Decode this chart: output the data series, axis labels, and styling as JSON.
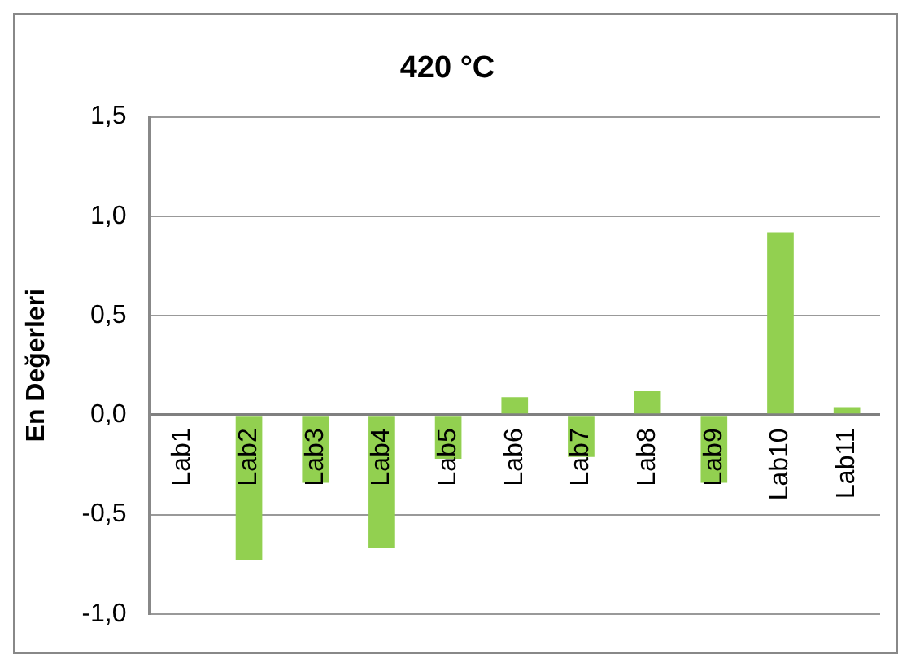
{
  "chart_data": {
    "type": "bar",
    "title": "420 °C",
    "ylabel": "En Değerleri",
    "categories": [
      "Lab1",
      "Lab2",
      "Lab3",
      "Lab4",
      "Lab5",
      "Lab6",
      "Lab7",
      "Lab8",
      "Lab9",
      "Lab10",
      "Lab11"
    ],
    "values": [
      0,
      -0.73,
      -0.34,
      -0.67,
      -0.22,
      0.09,
      -0.21,
      0.12,
      -0.34,
      0.92,
      0.04
    ],
    "color": "#92d050",
    "ylim": [
      -1,
      1.5
    ],
    "yticks": [
      {
        "value": -1,
        "label": "-1,0"
      },
      {
        "value": -0.5,
        "label": "-0,5"
      },
      {
        "value": 0,
        "label": "0,0"
      },
      {
        "value": 0.5,
        "label": "0,5"
      },
      {
        "value": 1,
        "label": "1,0"
      },
      {
        "value": 1.5,
        "label": "1,5"
      }
    ],
    "grid": "y",
    "legend": false
  }
}
